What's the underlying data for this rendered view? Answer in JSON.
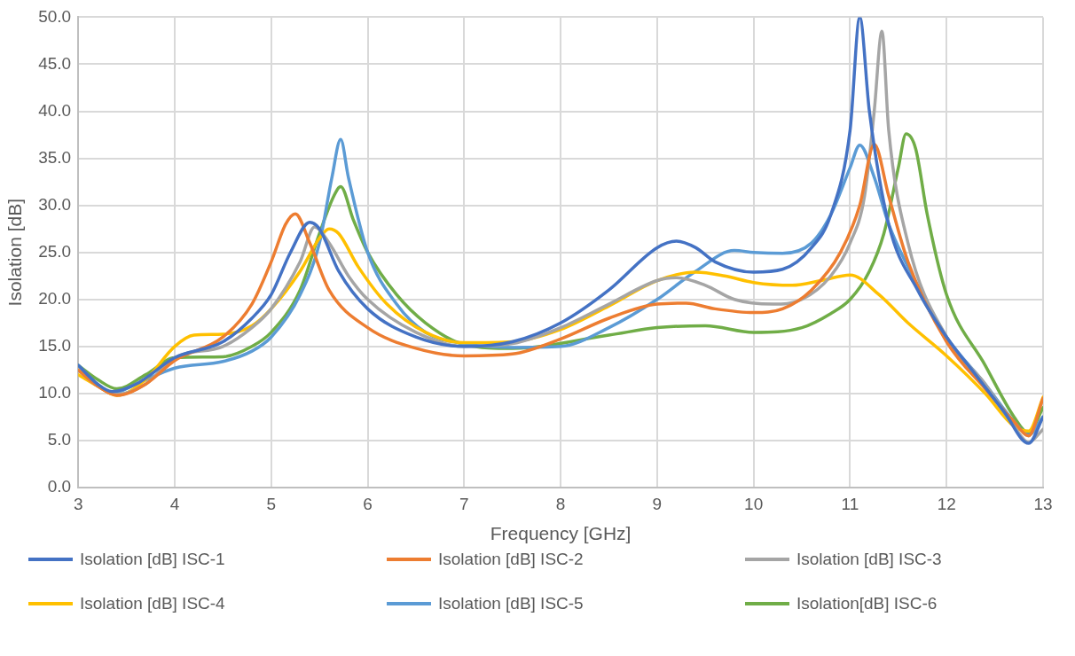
{
  "chart_data": {
    "type": "line",
    "xlabel": "Frequency [GHz]",
    "ylabel": "Isolation [dB]",
    "xlim": [
      3,
      13
    ],
    "xticks": [
      3,
      4,
      5,
      6,
      7,
      8,
      9,
      10,
      11,
      12,
      13
    ],
    "ylim": [
      0,
      50
    ],
    "yticks": [
      {
        "value": 0,
        "label": "0.0"
      },
      {
        "value": 5,
        "label": "5.0"
      },
      {
        "value": 10,
        "label": "10.0"
      },
      {
        "value": 15,
        "label": "15.0"
      },
      {
        "value": 20,
        "label": "20.0"
      },
      {
        "value": 25,
        "label": "25.0"
      },
      {
        "value": 30,
        "label": "30.0"
      },
      {
        "value": 35,
        "label": "35.0"
      },
      {
        "value": 40,
        "label": "40.0"
      },
      {
        "value": 45,
        "label": "45.0"
      },
      {
        "value": 50,
        "label": "50.0"
      }
    ],
    "grid": true,
    "legend": "bottom",
    "marker": "none",
    "line_style": "solid",
    "series": [
      {
        "name": "Isolation [dB] ISC-1",
        "color": "#4472c4",
        "x": [
          3,
          3.2,
          3.35,
          3.6,
          4,
          4.5,
          4.8,
          5,
          5.2,
          5.4,
          5.5,
          5.7,
          6,
          6.5,
          7,
          7.5,
          8,
          8.5,
          9,
          9.2,
          9.4,
          9.6,
          10,
          10.3,
          10.6,
          10.8,
          11,
          11.1,
          11.2,
          11.4,
          11.7,
          12,
          12.3,
          12.6,
          12.85,
          13
        ],
        "values": [
          13,
          11,
          10.2,
          11,
          13.8,
          15.5,
          18,
          20.5,
          25,
          28.2,
          27.5,
          23,
          19,
          16,
          15,
          15.5,
          17.5,
          21,
          25.5,
          26.2,
          25.5,
          24,
          22.9,
          23.2,
          25.5,
          29,
          38,
          50,
          40,
          28,
          21,
          16,
          12,
          8,
          4.7,
          7.5
        ]
      },
      {
        "name": "Isolation [dB] ISC-2",
        "color": "#ed7d31",
        "x": [
          3,
          3.2,
          3.4,
          3.7,
          4,
          4.5,
          4.8,
          5,
          5.15,
          5.25,
          5.4,
          5.6,
          6,
          6.5,
          7,
          7.5,
          8,
          8.5,
          9,
          9.3,
          9.6,
          10,
          10.3,
          10.6,
          10.9,
          11.1,
          11.25,
          11.4,
          11.6,
          12,
          12.4,
          12.7,
          12.85,
          13
        ],
        "values": [
          12.5,
          10.8,
          9.8,
          11,
          13.5,
          16,
          19.5,
          24,
          28,
          29.1,
          26,
          21,
          17,
          14.8,
          14,
          14.2,
          15.8,
          18,
          19.5,
          19.6,
          19,
          18.6,
          19,
          21,
          25,
          30,
          36.5,
          31,
          24,
          15.5,
          10.5,
          7,
          5.5,
          9.5
        ]
      },
      {
        "name": "Isolation [dB] ISC-3",
        "color": "#a5a5a5",
        "x": [
          3,
          3.2,
          3.4,
          3.7,
          4,
          4.5,
          4.8,
          5,
          5.3,
          5.45,
          5.6,
          5.8,
          6,
          6.5,
          7,
          7.5,
          8,
          8.5,
          9,
          9.2,
          9.5,
          9.8,
          10.2,
          10.5,
          10.8,
          11,
          11.15,
          11.25,
          11.33,
          11.4,
          11.6,
          12,
          12.4,
          12.7,
          12.85,
          13
        ],
        "values": [
          12.5,
          10.8,
          9.9,
          11,
          13.8,
          15,
          17,
          19,
          24,
          27.7,
          26,
          22.5,
          20,
          16.5,
          15,
          15.3,
          17,
          19.5,
          22,
          22.3,
          21.5,
          20,
          19.5,
          20,
          22.5,
          26,
          31,
          40,
          48.5,
          38,
          26,
          16,
          11,
          6.5,
          4.8,
          6.2
        ]
      },
      {
        "name": "Isolation [dB] ISC-4",
        "color": "#ffc000",
        "x": [
          3,
          3.2,
          3.4,
          3.7,
          4,
          4.2,
          4.5,
          4.8,
          5,
          5.3,
          5.5,
          5.6,
          5.7,
          5.9,
          6.2,
          6.6,
          7,
          7.5,
          8,
          8.5,
          9,
          9.4,
          9.7,
          10,
          10.4,
          10.7,
          11,
          11.3,
          11.6,
          12,
          12.4,
          12.7,
          12.85,
          13
        ],
        "values": [
          12,
          10.8,
          9.8,
          11.5,
          15,
          16.2,
          16.3,
          17.2,
          19,
          23,
          26.5,
          27.5,
          27,
          23.5,
          19.5,
          16.5,
          15.4,
          15.5,
          16.8,
          19.3,
          22,
          22.9,
          22.5,
          21.8,
          21.5,
          22,
          22.6,
          20.5,
          17.5,
          14,
          10,
          6.5,
          6,
          9.6
        ]
      },
      {
        "name": "Isolation [dB] ISC-5",
        "color": "#5b9bd5",
        "x": [
          3,
          3.2,
          3.35,
          3.6,
          4,
          4.5,
          4.8,
          5,
          5.3,
          5.5,
          5.63,
          5.72,
          5.8,
          6,
          6.3,
          6.6,
          7,
          7.5,
          8,
          8.5,
          9,
          9.4,
          9.8,
          10,
          10.3,
          10.6,
          10.8,
          11,
          11.1,
          11.25,
          11.4,
          11.7,
          12,
          12.4,
          12.7,
          12.85,
          13
        ],
        "values": [
          13,
          11,
          10,
          11,
          12.7,
          13.4,
          14.5,
          16,
          20.5,
          26,
          33,
          37,
          33,
          25,
          19.5,
          16.5,
          15.3,
          14.9,
          15,
          17,
          20,
          23,
          25.2,
          25,
          24.9,
          26,
          29,
          34,
          36.4,
          33,
          28,
          21.5,
          16,
          11,
          7,
          5.6,
          7.5
        ]
      },
      {
        "name": "Isolation[dB] ISC-6",
        "color": "#70ad47",
        "x": [
          3,
          3.2,
          3.4,
          3.7,
          4,
          4.5,
          4.8,
          5,
          5.3,
          5.5,
          5.65,
          5.72,
          5.85,
          6,
          6.3,
          6.6,
          7,
          7.5,
          8.5,
          9,
          9.5,
          10,
          10.5,
          10.8,
          11,
          11.2,
          11.35,
          11.5,
          11.58,
          11.68,
          11.8,
          12,
          12.4,
          12.7,
          12.85,
          13
        ],
        "values": [
          13,
          11.5,
          10.5,
          12,
          13.8,
          13.9,
          15,
          16.5,
          21,
          27,
          31,
          32,
          28.5,
          25,
          20.5,
          17.5,
          15.2,
          14.8,
          16.2,
          17,
          17.2,
          16.5,
          17,
          18.5,
          20,
          23,
          27,
          34,
          37.6,
          36,
          29,
          20.5,
          13,
          7.5,
          5.8,
          8.5
        ]
      }
    ]
  }
}
